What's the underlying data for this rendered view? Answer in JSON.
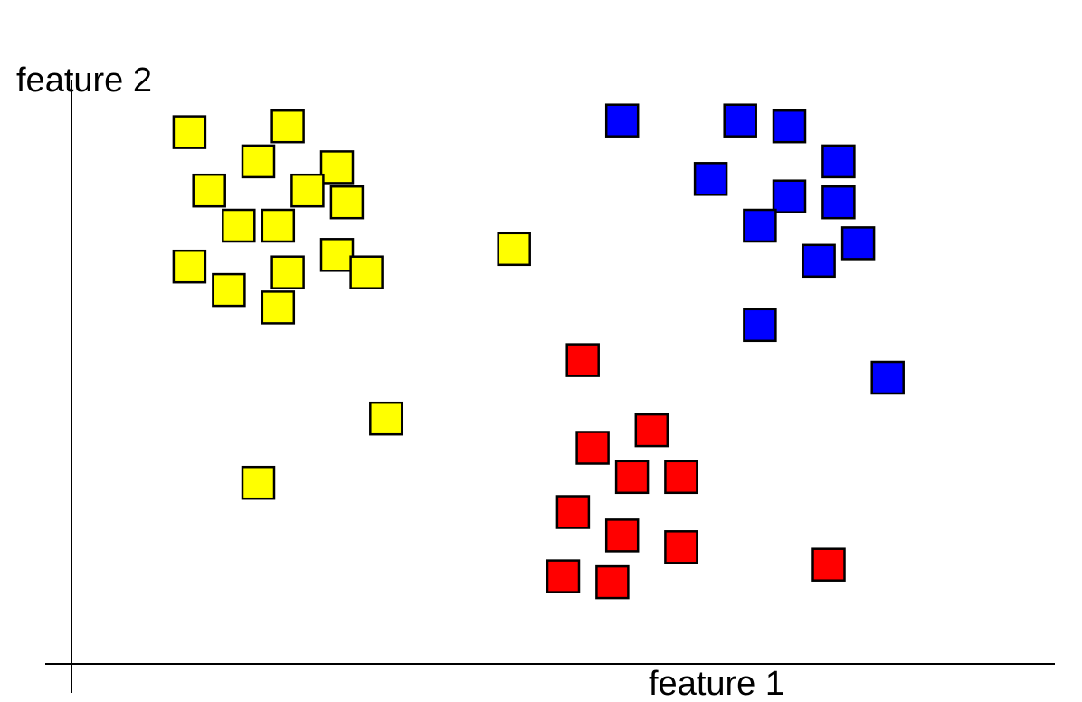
{
  "chart_data": {
    "type": "scatter",
    "title": "",
    "xlabel": "feature 1",
    "ylabel": "feature 2",
    "xlim": [
      0,
      100
    ],
    "ylim": [
      0,
      100
    ],
    "grid": false,
    "legend": "none",
    "marker": "square",
    "series": [
      {
        "color": "#ffff00",
        "points": [
          {
            "x": 12,
            "y": 91
          },
          {
            "x": 22,
            "y": 92
          },
          {
            "x": 19,
            "y": 86
          },
          {
            "x": 27,
            "y": 85
          },
          {
            "x": 14,
            "y": 81
          },
          {
            "x": 24,
            "y": 81
          },
          {
            "x": 28,
            "y": 79
          },
          {
            "x": 17,
            "y": 75
          },
          {
            "x": 21,
            "y": 75
          },
          {
            "x": 12,
            "y": 68
          },
          {
            "x": 16,
            "y": 64
          },
          {
            "x": 22,
            "y": 67
          },
          {
            "x": 27,
            "y": 70
          },
          {
            "x": 30,
            "y": 67
          },
          {
            "x": 21,
            "y": 61
          },
          {
            "x": 45,
            "y": 71
          },
          {
            "x": 32,
            "y": 42
          },
          {
            "x": 19,
            "y": 31
          }
        ]
      },
      {
        "color": "#0000ff",
        "points": [
          {
            "x": 56,
            "y": 93
          },
          {
            "x": 68,
            "y": 93
          },
          {
            "x": 73,
            "y": 92
          },
          {
            "x": 65,
            "y": 83
          },
          {
            "x": 78,
            "y": 86
          },
          {
            "x": 73,
            "y": 80
          },
          {
            "x": 78,
            "y": 79
          },
          {
            "x": 70,
            "y": 75
          },
          {
            "x": 80,
            "y": 72
          },
          {
            "x": 76,
            "y": 69
          },
          {
            "x": 70,
            "y": 58
          },
          {
            "x": 83,
            "y": 49
          }
        ]
      },
      {
        "color": "#ff0000",
        "points": [
          {
            "x": 52,
            "y": 52
          },
          {
            "x": 59,
            "y": 40
          },
          {
            "x": 53,
            "y": 37
          },
          {
            "x": 57,
            "y": 32
          },
          {
            "x": 62,
            "y": 32
          },
          {
            "x": 51,
            "y": 26
          },
          {
            "x": 56,
            "y": 22
          },
          {
            "x": 62,
            "y": 20
          },
          {
            "x": 50,
            "y": 15
          },
          {
            "x": 55,
            "y": 14
          },
          {
            "x": 77,
            "y": 17
          }
        ]
      }
    ]
  }
}
